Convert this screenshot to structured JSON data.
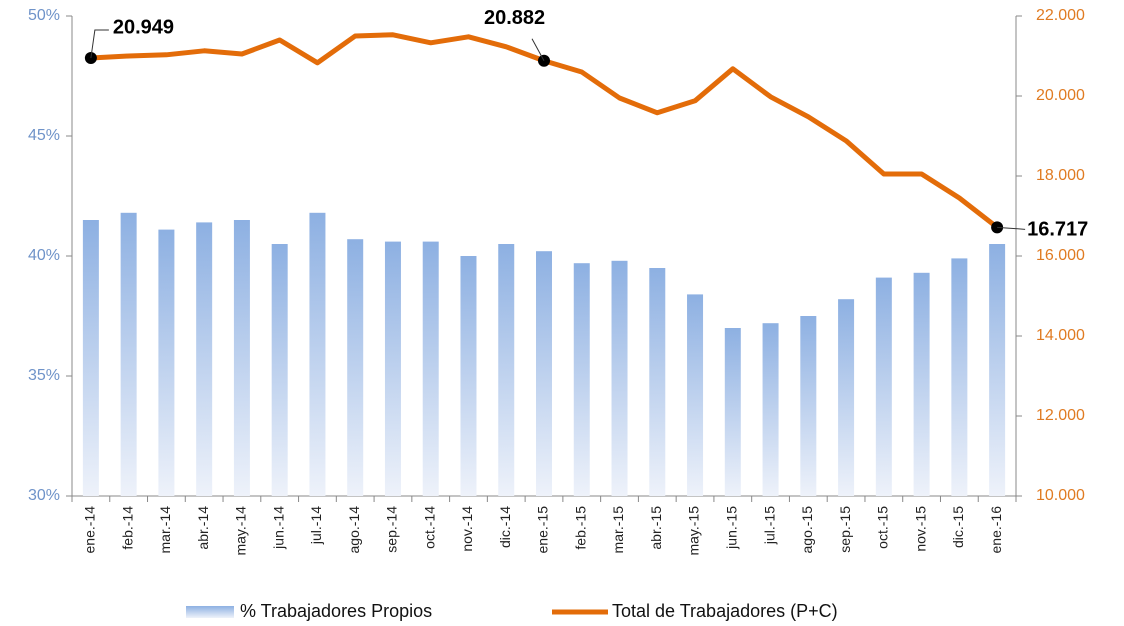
{
  "chart_data": {
    "type": "bar_line",
    "categories": [
      "ene.-14",
      "feb.-14",
      "mar.-14",
      "abr.-14",
      "may.-14",
      "jun.-14",
      "jul.-14",
      "ago.-14",
      "sep.-14",
      "oct.-14",
      "nov.-14",
      "dic.-14",
      "ene.-15",
      "feb.-15",
      "mar.-15",
      "abr.-15",
      "may.-15",
      "jun.-15",
      "jul.-15",
      "ago.-15",
      "sep.-15",
      "oct.-15",
      "nov.-15",
      "dic.-15",
      "ene.-16"
    ],
    "series": [
      {
        "name": "% Trabajadores Propios",
        "type": "bar",
        "color": "#8db0e2",
        "values": [
          41.5,
          41.8,
          41.1,
          41.4,
          41.5,
          40.5,
          41.8,
          40.7,
          40.6,
          40.6,
          40.0,
          40.5,
          40.2,
          39.7,
          39.8,
          39.5,
          38.4,
          37.0,
          37.2,
          37.5,
          38.2,
          39.1,
          39.3,
          39.9,
          40.5
        ]
      },
      {
        "name": "Total de Trabajadores (P+C)",
        "type": "line",
        "axis": "y2",
        "color": "#e36c09",
        "values": [
          20949,
          21000,
          21030,
          21130,
          21050,
          21400,
          20830,
          21500,
          21530,
          21330,
          21480,
          21230,
          20882,
          20600,
          19950,
          19580,
          19880,
          20680,
          19980,
          19480,
          18880,
          18050,
          18050,
          17450,
          16717
        ],
        "value_labels": [
          "20.949",
          null,
          null,
          null,
          null,
          null,
          null,
          null,
          null,
          null,
          null,
          null,
          "20.882",
          null,
          null,
          null,
          null,
          null,
          null,
          null,
          null,
          null,
          null,
          null,
          "16.717"
        ]
      }
    ],
    "ylim": [
      30,
      50
    ],
    "yticks": [
      {
        "value": 30,
        "label": "30%"
      },
      {
        "value": 35,
        "label": "35%"
      },
      {
        "value": 40,
        "label": "40%"
      },
      {
        "value": 45,
        "label": "45%"
      },
      {
        "value": 50,
        "label": "50%"
      }
    ],
    "y2lim": [
      10000,
      22000
    ],
    "y2ticks": [
      {
        "value": 10000,
        "label": "10.000"
      },
      {
        "value": 12000,
        "label": "12.000"
      },
      {
        "value": 14000,
        "label": "14.000"
      },
      {
        "value": 16000,
        "label": "16.000"
      },
      {
        "value": 18000,
        "label": "18.000"
      },
      {
        "value": 20000,
        "label": "20.000"
      },
      {
        "value": 22000,
        "label": "22.000"
      }
    ],
    "legend": "bottom"
  }
}
